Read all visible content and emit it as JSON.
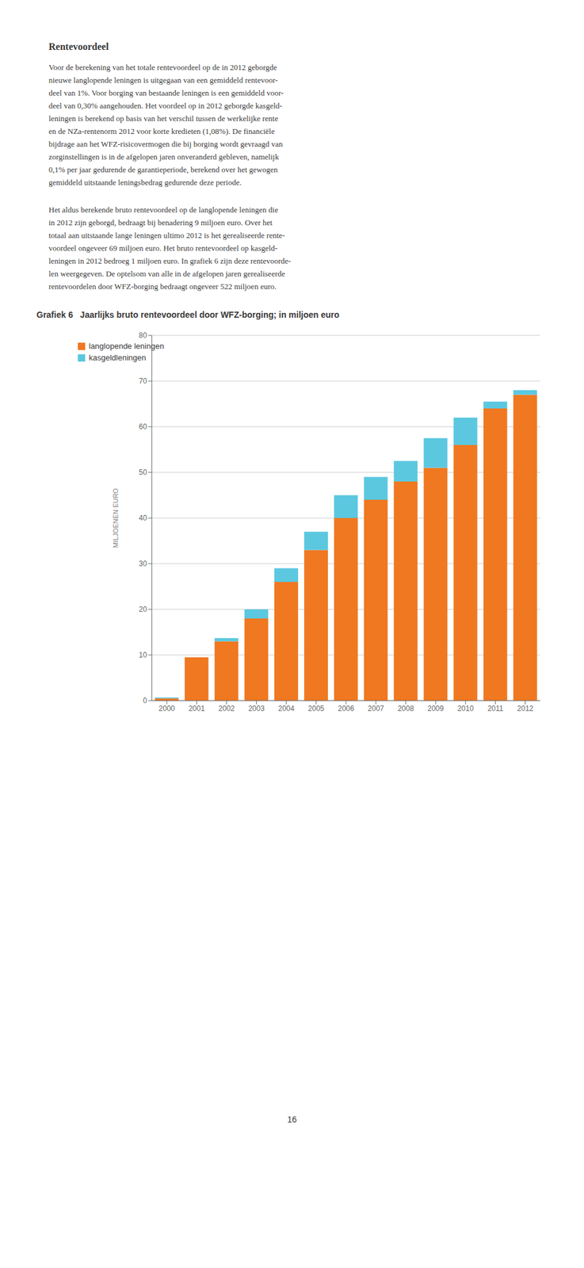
{
  "chart_data": {
    "type": "bar",
    "title": "Grafiek 6   Jaarlijks bruto rentevoordeel door WFZ-borging; in miljoen euro",
    "ylabel": "MILJOENEN EURO",
    "categories": [
      "2000",
      "2001",
      "2002",
      "2003",
      "2004",
      "2005",
      "2006",
      "2007",
      "2008",
      "2009",
      "2010",
      "2011",
      "2012"
    ],
    "series": [
      {
        "name": "langlopende leningen",
        "color": "#F07820",
        "values": [
          0.5,
          9.5,
          13.0,
          18.0,
          26.0,
          33.0,
          40.0,
          44.0,
          48.0,
          51.0,
          56.0,
          64.0,
          67.0
        ]
      },
      {
        "name": "kasgeldleningen",
        "color": "#5BC8E0",
        "values": [
          0.2,
          0.0,
          0.7,
          2.0,
          3.0,
          4.0,
          5.0,
          5.0,
          4.5,
          6.5,
          6.0,
          1.5,
          1.0
        ]
      }
    ],
    "stacked": true,
    "ylim": [
      0,
      80
    ],
    "yticks": [
      0,
      10,
      20,
      30,
      40,
      50,
      60,
      70,
      80
    ],
    "grid": true,
    "legend": "upper left",
    "annotations": [
      "Rentevoordeel",
      "Voor de berekening van het totale rentevoordeel op de in 2012 geborgde",
      "nieuwe langlopende leningen is uitgegaan van een gemiddeld rentevoor-",
      "deel van 1%. Voor borging van bestaande leningen is een gemiddeld voor-",
      "deel van 0,30% aangehouden. Het voordeel op in 2012 geborgde kasgeld-",
      "leningen is berekend op basis van het verschil tussen de werkelijke rente",
      "en de NZa-rentenorm 2012 voor korte kredieten (1,08%). De financiële",
      "bijdrage aan het WFZ-risicovermogen die bij borging wordt gevraagd van",
      "zorginstellingen is in de afgelopen jaren onveranderd gebleven, namelijk",
      "0,1% per jaar gedurende de garantieperiode, berekend over het gewogen",
      "gemiddeld uitstaande leningsbedrag gedurende deze periode.",
      "Het aldus berekende bruto rentevoordeel op de langlopende leningen die",
      "in 2012 zijn geborgd, bedraagt bij benadering 9 miljoen euro. Over het",
      "totaal aan uitstaande lange leningen ultimo 2012 is het gerealiseerde rente-",
      "voordeel ongeveer 69 miljoen euro. Het bruto rentevoordeel op kasgeld-",
      "leningen in 2012 bedroeg 1 miljoen euro. In grafiek 6 zijn deze rentevoorde-",
      "len weergegeven. De optelsom van alle in de afgelopen jaren gerealiseerde",
      "rentevoordelen door WFZ-borging bedraagt ongeveer 522 miljoen euro.",
      "16"
    ]
  }
}
